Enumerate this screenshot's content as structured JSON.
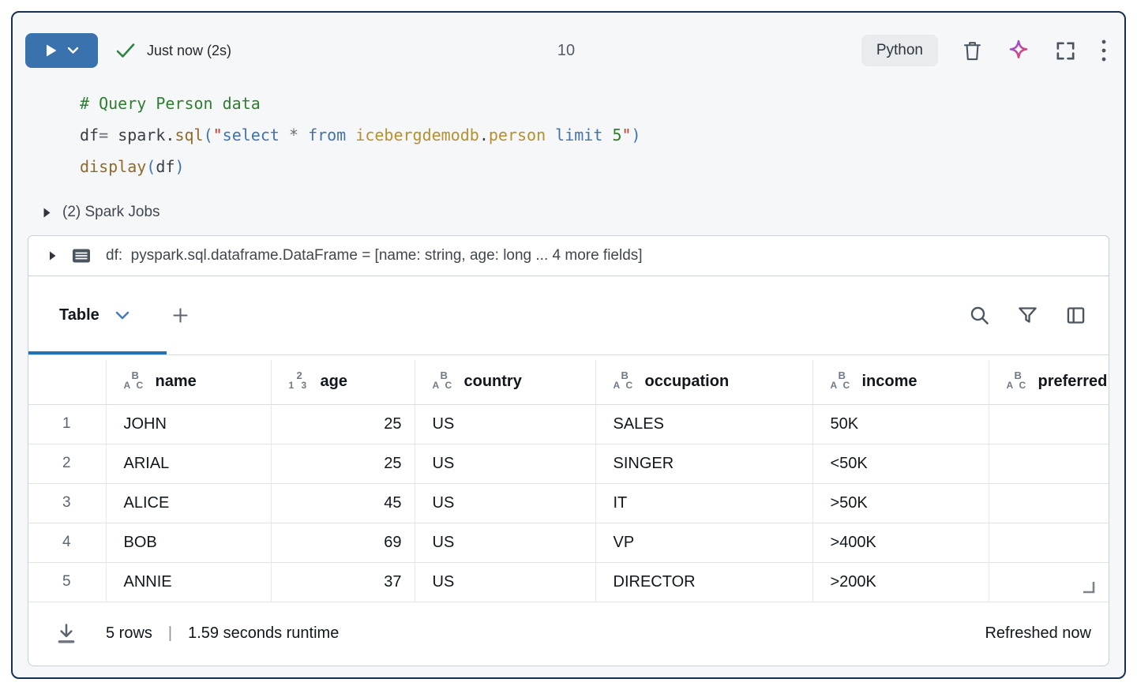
{
  "colors": {
    "accent_blue": "#3a72ae",
    "tab_accent_blue": "#2272b4",
    "success_green": "#2e8540",
    "cell_border_navy": "#16304e",
    "sparkle_gradient_start": "#8356f6",
    "sparkle_gradient_end": "#ef3e56"
  },
  "toolbar": {
    "status_text": "Just now (2s)",
    "execution_count": "10",
    "language": "Python"
  },
  "code": {
    "lines": [
      [
        {
          "t": "# Query Person data",
          "c": "comment"
        }
      ],
      [
        {
          "t": "df",
          "c": "plain"
        },
        {
          "t": "= ",
          "c": "op"
        },
        {
          "t": "spark",
          "c": "plain"
        },
        {
          "t": ".",
          "c": "plain"
        },
        {
          "t": "sql",
          "c": "func"
        },
        {
          "t": "(",
          "c": "paren"
        },
        {
          "t": "\"",
          "c": "str"
        },
        {
          "t": "select",
          "c": "kw"
        },
        {
          "t": " ",
          "c": "plain"
        },
        {
          "t": "*",
          "c": "op"
        },
        {
          "t": " ",
          "c": "plain"
        },
        {
          "t": "from",
          "c": "kw"
        },
        {
          "t": " ",
          "c": "plain"
        },
        {
          "t": "icebergdemodb",
          "c": "ident"
        },
        {
          "t": ".",
          "c": "plain"
        },
        {
          "t": "person",
          "c": "ident"
        },
        {
          "t": " ",
          "c": "plain"
        },
        {
          "t": "limit",
          "c": "kw"
        },
        {
          "t": " ",
          "c": "plain"
        },
        {
          "t": "5",
          "c": "num"
        },
        {
          "t": "\"",
          "c": "str"
        },
        {
          "t": ")",
          "c": "paren"
        }
      ],
      [
        {
          "t": "display",
          "c": "func"
        },
        {
          "t": "(",
          "c": "paren"
        },
        {
          "t": "df",
          "c": "plain"
        },
        {
          "t": ")",
          "c": "paren"
        }
      ]
    ]
  },
  "spark_jobs": {
    "label": "(2) Spark Jobs"
  },
  "dataframe_summary": {
    "text": "df:  pyspark.sql.dataframe.DataFrame = [name: string, age: long ... 4 more fields]"
  },
  "results": {
    "tab_label": "Table",
    "table": {
      "columns": [
        {
          "name": "name",
          "type": "string",
          "align": "left"
        },
        {
          "name": "age",
          "type": "number",
          "align": "right"
        },
        {
          "name": "country",
          "type": "string",
          "align": "left"
        },
        {
          "name": "occupation",
          "type": "string",
          "align": "left"
        },
        {
          "name": "income",
          "type": "string",
          "align": "left"
        },
        {
          "name": "preferred",
          "type": "string",
          "align": "left"
        }
      ],
      "rows": [
        [
          "1",
          "JOHN",
          "25",
          "US",
          "SALES",
          "50K",
          ""
        ],
        [
          "2",
          "ARIAL",
          "25",
          "US",
          "SINGER",
          "<50K",
          ""
        ],
        [
          "3",
          "ALICE",
          "45",
          "US",
          "IT",
          ">50K",
          ""
        ],
        [
          "4",
          "BOB",
          "69",
          "US",
          "VP",
          ">400K",
          ""
        ],
        [
          "5",
          "ANNIE",
          "37",
          "US",
          "DIRECTOR",
          ">200K",
          ""
        ]
      ]
    },
    "footer": {
      "rows_text": "5 rows",
      "separator": "|",
      "runtime_text": "1.59 seconds runtime",
      "refreshed_text": "Refreshed now"
    }
  }
}
